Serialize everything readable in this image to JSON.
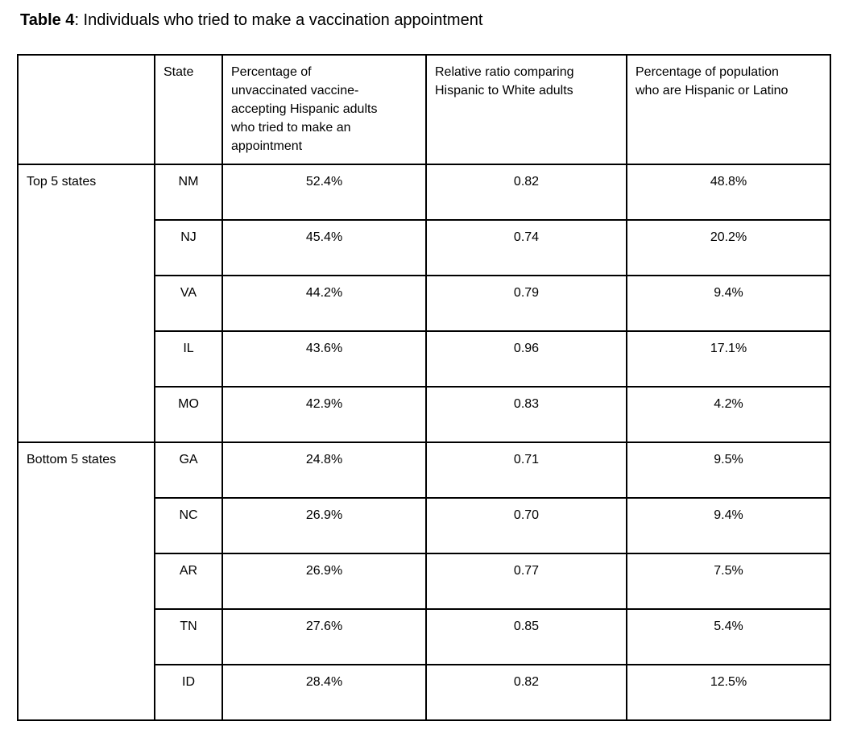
{
  "title": {
    "bold": "Table 4",
    "rest": ": Individuals who tried to make a vaccination appointment"
  },
  "table": {
    "columns": {
      "group": "",
      "state": "State",
      "pct_tried": "Percentage of\nunvaccinated vaccine-\naccepting Hispanic adults\nwho tried to make an\nappointment",
      "ratio": "Relative ratio comparing\nHispanic to White adults",
      "pct_hispanic": "Percentage of population\nwho are Hispanic or Latino"
    },
    "groups": [
      {
        "label": "Top 5 states",
        "rows": [
          {
            "state": "NM",
            "pct_tried": "52.4%",
            "ratio": "0.82",
            "pct_hispanic": "48.8%"
          },
          {
            "state": "NJ",
            "pct_tried": "45.4%",
            "ratio": "0.74",
            "pct_hispanic": "20.2%"
          },
          {
            "state": "VA",
            "pct_tried": "44.2%",
            "ratio": "0.79",
            "pct_hispanic": "9.4%"
          },
          {
            "state": "IL",
            "pct_tried": "43.6%",
            "ratio": "0.96",
            "pct_hispanic": "17.1%"
          },
          {
            "state": "MO",
            "pct_tried": "42.9%",
            "ratio": "0.83",
            "pct_hispanic": "4.2%"
          }
        ]
      },
      {
        "label": "Bottom 5 states",
        "rows": [
          {
            "state": "GA",
            "pct_tried": "24.8%",
            "ratio": "0.71",
            "pct_hispanic": "9.5%"
          },
          {
            "state": "NC",
            "pct_tried": "26.9%",
            "ratio": "0.70",
            "pct_hispanic": "9.4%"
          },
          {
            "state": "AR",
            "pct_tried": "26.9%",
            "ratio": "0.77",
            "pct_hispanic": "7.5%"
          },
          {
            "state": "TN",
            "pct_tried": "27.6%",
            "ratio": "0.85",
            "pct_hispanic": "5.4%"
          },
          {
            "state": "ID",
            "pct_tried": "28.4%",
            "ratio": "0.82",
            "pct_hispanic": "12.5%"
          }
        ]
      }
    ],
    "colors": {
      "background": "#ffffff",
      "text": "#000000",
      "border": "#000000"
    }
  }
}
